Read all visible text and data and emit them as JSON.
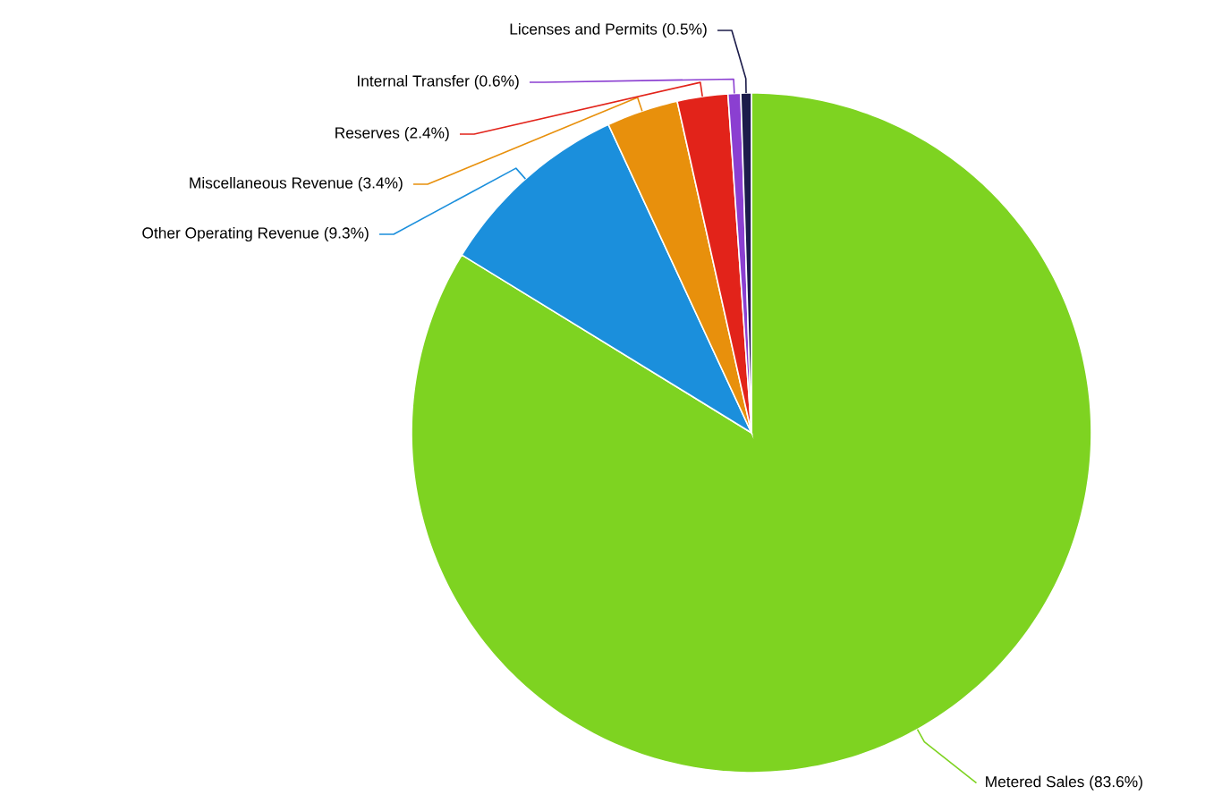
{
  "chart_data": {
    "type": "pie",
    "categories": [
      "Metered Sales",
      "Other Operating Revenue",
      "Miscellaneous Revenue",
      "Reserves",
      "Internal Transfer",
      "Licenses and Permits"
    ],
    "values": [
      83.6,
      9.3,
      3.4,
      2.4,
      0.6,
      0.5
    ],
    "value_labels": [
      "(83.6%)",
      "(9.3%)",
      "(3.4%)",
      "(2.4%)",
      "(0.6%)",
      "(0.5%)"
    ],
    "colors": [
      "#7ed321",
      "#1b8fdc",
      "#e8900c",
      "#e2231a",
      "#8b3fd1",
      "#1c1c4a"
    ]
  }
}
